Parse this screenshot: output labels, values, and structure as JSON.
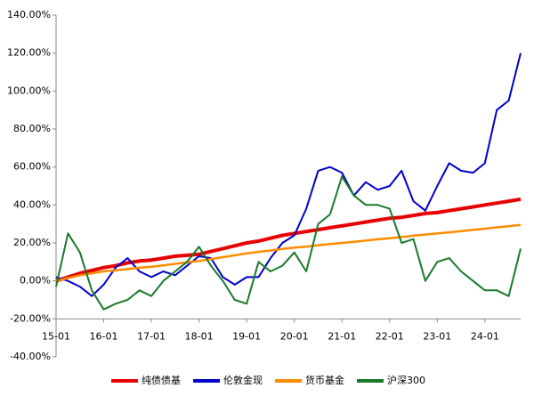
{
  "chart_data": {
    "type": "line",
    "x": [
      "15-01",
      "15-04",
      "15-07",
      "15-10",
      "16-01",
      "16-04",
      "16-07",
      "16-10",
      "17-01",
      "17-04",
      "17-07",
      "17-10",
      "18-01",
      "18-04",
      "18-07",
      "18-10",
      "19-01",
      "19-04",
      "19-07",
      "19-10",
      "20-01",
      "20-04",
      "20-07",
      "20-10",
      "21-01",
      "21-04",
      "21-07",
      "21-10",
      "22-01",
      "22-04",
      "22-07",
      "22-10",
      "23-01",
      "23-04",
      "23-07",
      "23-10",
      "24-01",
      "24-04",
      "24-07",
      "24-10"
    ],
    "series": [
      {
        "name": "纯债债基",
        "color": "#e60000",
        "width": 4,
        "values": [
          0,
          2,
          4,
          5.5,
          7,
          8,
          9.5,
          10.5,
          11,
          12,
          13,
          13.5,
          14,
          15.5,
          17,
          18.5,
          20,
          21,
          22.5,
          24,
          25,
          26,
          27,
          28,
          29,
          30,
          31,
          32,
          33,
          33.5,
          34.5,
          35.5,
          36,
          37,
          38,
          39,
          40,
          41,
          42,
          43
        ]
      },
      {
        "name": "伦敦金现",
        "color": "#0000cc",
        "width": 2,
        "values": [
          2,
          0,
          -3,
          -8,
          -2,
          7,
          12,
          5,
          2,
          5,
          3,
          8,
          13,
          12,
          2,
          -2,
          2,
          2,
          12,
          20,
          24,
          38,
          58,
          60,
          57,
          45,
          52,
          48,
          50,
          58,
          42,
          37,
          50,
          62,
          58,
          57,
          62,
          90,
          95,
          120
        ]
      },
      {
        "name": "货币基金",
        "color": "#ff8c00",
        "width": 2.5,
        "values": [
          0,
          1.5,
          3,
          4,
          5,
          5.6,
          6.2,
          6.9,
          7.5,
          8.2,
          9,
          9.8,
          10.5,
          11.5,
          12.5,
          13.5,
          14.5,
          15.3,
          16,
          16.8,
          17.5,
          18.1,
          18.8,
          19.4,
          20,
          20.6,
          21.2,
          21.9,
          22.5,
          23.1,
          23.8,
          24.4,
          25,
          25.6,
          26.2,
          26.9,
          27.5,
          28.2,
          28.8,
          29.5
        ]
      },
      {
        "name": "沪深300",
        "color": "#1a7a2a",
        "width": 2,
        "values": [
          -3,
          25,
          15,
          -5,
          -15,
          -12,
          -10,
          -5,
          -8,
          0,
          5,
          10,
          18,
          8,
          0,
          -10,
          -12,
          10,
          5,
          8,
          15,
          5,
          30,
          35,
          55,
          45,
          40,
          40,
          38,
          20,
          22,
          0,
          10,
          12,
          5,
          0,
          -5,
          -5,
          -8,
          17
        ]
      }
    ],
    "xlim": [
      "15-01",
      "24-10"
    ],
    "xticks": [
      "15-01",
      "16-01",
      "17-01",
      "18-01",
      "19-01",
      "20-01",
      "21-01",
      "22-01",
      "23-01",
      "24-01"
    ],
    "ylim": [
      -40,
      140
    ],
    "yticks": [
      {
        "value": 140,
        "label": "140.00%"
      },
      {
        "value": 120,
        "label": "120.00%"
      },
      {
        "value": 100,
        "label": "100.00%"
      },
      {
        "value": 80,
        "label": "80.00%"
      },
      {
        "value": 60,
        "label": "60.00%"
      },
      {
        "value": 40,
        "label": "40.00%"
      },
      {
        "value": 20,
        "label": "20.00%"
      },
      {
        "value": 0,
        "label": "0.00%"
      },
      {
        "value": -20,
        "label": "-20.00%"
      },
      {
        "value": -40,
        "label": "-40.00%"
      }
    ],
    "x_axis_at": -20,
    "grid": false,
    "legend": "bottom"
  }
}
